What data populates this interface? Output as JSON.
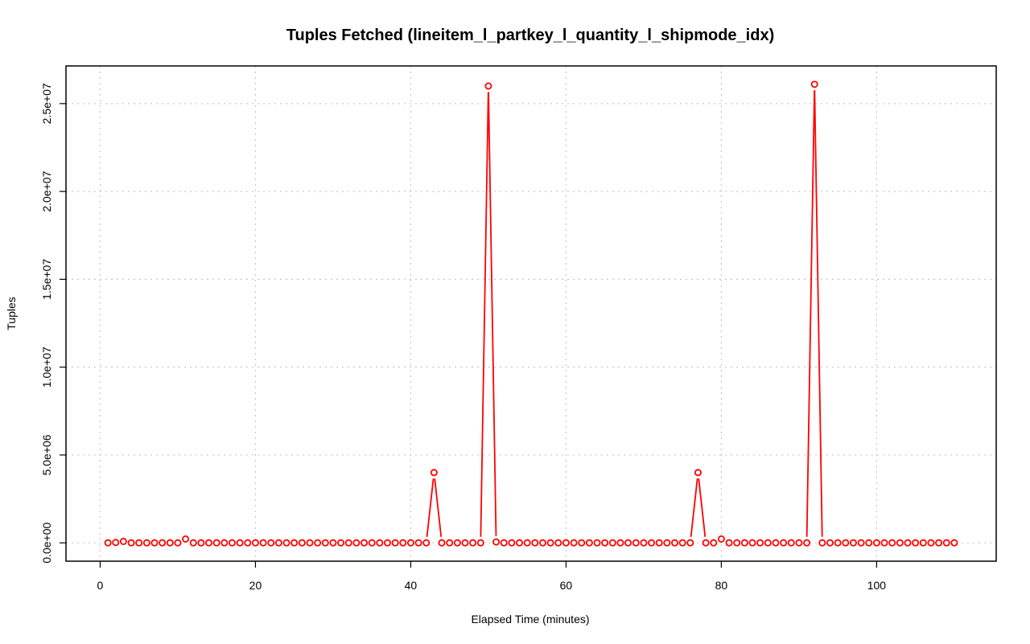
{
  "chart_data": {
    "type": "line",
    "title": "Tuples Fetched (lineitem_l_partkey_l_quantity_l_shipmode_idx)",
    "xlabel": "Elapsed Time (minutes)",
    "ylabel": "Tuples",
    "xlim": [
      -4.4,
      115.4
    ],
    "ylim": [
      -1044000,
      27144000
    ],
    "x_ticks": [
      0,
      20,
      40,
      60,
      80,
      100
    ],
    "x_tick_labels": [
      "0",
      "20",
      "40",
      "60",
      "80",
      "100"
    ],
    "y_ticks": [
      0,
      5000000,
      10000000,
      15000000,
      20000000,
      25000000
    ],
    "y_tick_labels": [
      "0.0e+00",
      "5.0e+06",
      "1.0e+07",
      "1.5e+07",
      "2.0e+07",
      "2.5e+07"
    ],
    "grid": true,
    "line_style": "points-with-gapped-lines",
    "colors": {
      "series": "#ff0000",
      "grid": "#c8c8c8",
      "axis": "#000000"
    },
    "x": [
      1,
      2,
      3,
      4,
      5,
      6,
      7,
      8,
      9,
      10,
      11,
      12,
      13,
      14,
      15,
      16,
      17,
      18,
      19,
      20,
      21,
      22,
      23,
      24,
      25,
      26,
      27,
      28,
      29,
      30,
      31,
      32,
      33,
      34,
      35,
      36,
      37,
      38,
      39,
      40,
      41,
      42,
      43,
      44,
      45,
      46,
      47,
      48,
      49,
      50,
      51,
      52,
      53,
      54,
      55,
      56,
      57,
      58,
      59,
      60,
      61,
      62,
      63,
      64,
      65,
      66,
      67,
      68,
      69,
      70,
      71,
      72,
      73,
      74,
      75,
      76,
      77,
      78,
      79,
      80,
      81,
      82,
      83,
      84,
      85,
      86,
      87,
      88,
      89,
      90,
      91,
      92,
      93,
      94,
      95,
      96,
      97,
      98,
      99,
      100,
      101,
      102,
      103,
      104,
      105,
      106,
      107,
      108,
      109,
      110
    ],
    "y": [
      0,
      20000,
      80000,
      0,
      0,
      0,
      0,
      0,
      0,
      0,
      220000,
      0,
      0,
      0,
      0,
      0,
      0,
      0,
      0,
      0,
      0,
      0,
      0,
      0,
      0,
      0,
      0,
      0,
      0,
      0,
      0,
      0,
      0,
      0,
      0,
      0,
      0,
      0,
      0,
      0,
      0,
      0,
      4000000,
      0,
      0,
      0,
      0,
      0,
      0,
      26000000,
      50000,
      0,
      0,
      0,
      0,
      0,
      0,
      0,
      0,
      0,
      0,
      0,
      0,
      0,
      0,
      0,
      0,
      0,
      0,
      0,
      0,
      0,
      0,
      0,
      0,
      0,
      4000000,
      0,
      0,
      220000,
      0,
      0,
      0,
      0,
      0,
      0,
      0,
      0,
      0,
      0,
      0,
      26100000,
      0,
      0,
      0,
      0,
      0,
      0,
      0,
      0,
      0,
      0,
      0,
      0,
      0,
      0,
      0,
      0,
      0,
      0
    ]
  }
}
